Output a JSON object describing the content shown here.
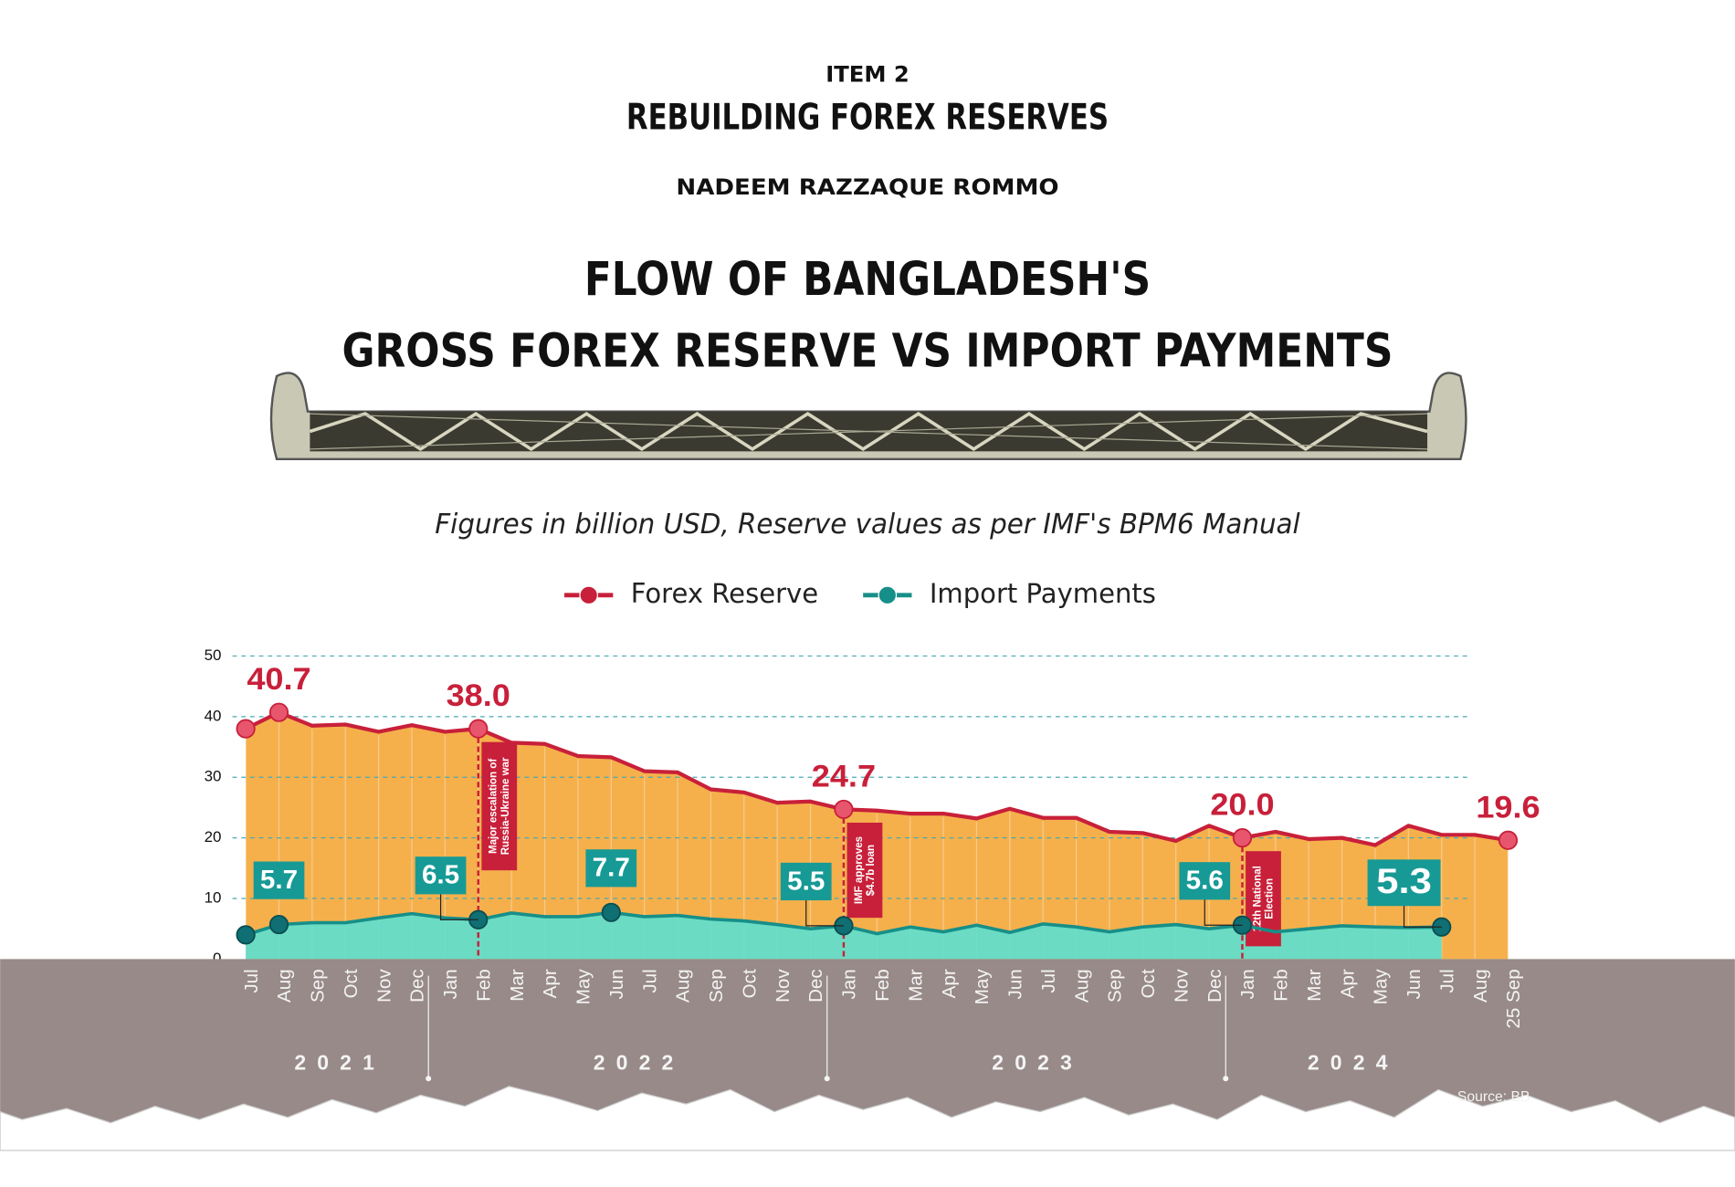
{
  "header": {
    "kicker": "ITEM 2",
    "headline": "REBUILDING FOREX RESERVES",
    "byline": "NADEEM RAZZAQUE ROMMO"
  },
  "chart_data": {
    "type": "area-line",
    "title": [
      "FLOW OF BANGLADESH'S",
      "GROSS FOREX RESERVE VS IMPORT PAYMENTS"
    ],
    "subtitle": "Figures in billion USD, Reserve values as per IMF's BPM6 Manual",
    "categories": [
      "Jul",
      "Aug",
      "Sep",
      "Oct",
      "Nov",
      "Dec",
      "Jan",
      "Feb",
      "Mar",
      "Apr",
      "May",
      "Jun",
      "Jul",
      "Aug",
      "Sep",
      "Oct",
      "Nov",
      "Dec",
      "Jan",
      "Feb",
      "Mar",
      "Apr",
      "May",
      "Jun",
      "Jul",
      "Aug",
      "Sep",
      "Oct",
      "Nov",
      "Dec",
      "Jan",
      "Feb",
      "Mar",
      "Apr",
      "May",
      "Jun",
      "Jul",
      "Aug",
      "25 Sep"
    ],
    "years": [
      "2021",
      "2022",
      "2023",
      "2024"
    ],
    "series": [
      {
        "name": "Forex Reserve",
        "color": "#c8203a",
        "fill": "#f5b04c",
        "values": [
          38.0,
          40.7,
          38.5,
          38.7,
          37.5,
          38.6,
          37.5,
          38.0,
          35.7,
          35.5,
          33.5,
          33.3,
          31.0,
          30.8,
          28.0,
          27.5,
          25.8,
          26.0,
          24.7,
          24.5,
          24.0,
          24.0,
          23.2,
          24.8,
          23.3,
          23.3,
          21.0,
          20.8,
          19.5,
          22.0,
          20.0,
          21.0,
          19.8,
          20.0,
          18.8,
          22.0,
          20.5,
          20.5,
          19.6
        ],
        "value_labels": [
          null,
          "40.7",
          null,
          null,
          null,
          null,
          null,
          "38.0",
          null,
          null,
          null,
          null,
          null,
          null,
          null,
          null,
          null,
          null,
          "24.7",
          null,
          null,
          null,
          null,
          null,
          null,
          null,
          null,
          null,
          null,
          null,
          "20.0",
          null,
          null,
          null,
          null,
          null,
          null,
          null,
          "19.6"
        ]
      },
      {
        "name": "Import Payments",
        "color": "#178f89",
        "fill": "#5ce0d0",
        "values": [
          4.0,
          5.7,
          6.0,
          6.0,
          6.8,
          7.5,
          6.8,
          6.5,
          7.6,
          7.0,
          7.0,
          7.7,
          7.0,
          7.2,
          6.6,
          6.3,
          5.7,
          5.0,
          5.5,
          4.2,
          5.3,
          4.5,
          5.6,
          4.4,
          5.8,
          5.3,
          4.5,
          5.3,
          5.7,
          5.0,
          5.6,
          4.5,
          5.0,
          5.5,
          5.3,
          5.2,
          5.3,
          null,
          null
        ],
        "value_labels": [
          null,
          "5.7",
          null,
          null,
          null,
          null,
          null,
          "6.5",
          null,
          null,
          null,
          "7.7",
          null,
          null,
          null,
          null,
          null,
          null,
          "5.5",
          null,
          null,
          null,
          null,
          null,
          null,
          null,
          null,
          null,
          null,
          null,
          "5.6",
          null,
          null,
          null,
          null,
          null,
          "5.3",
          null,
          null
        ]
      }
    ],
    "annotations": [
      null,
      null,
      null,
      null,
      null,
      null,
      null,
      "Major escalation of Russia-Ukraine war",
      null,
      null,
      null,
      null,
      null,
      null,
      null,
      null,
      null,
      null,
      "IMF approves $4.7b loan",
      null,
      null,
      null,
      null,
      null,
      null,
      null,
      null,
      null,
      null,
      null,
      "12th National Election",
      null,
      null,
      null,
      null,
      null,
      null,
      null,
      null
    ],
    "ylim": [
      0,
      50
    ],
    "yticks": [
      0,
      10,
      20,
      30,
      40,
      50
    ],
    "grid": true,
    "source": "Source: BB"
  }
}
